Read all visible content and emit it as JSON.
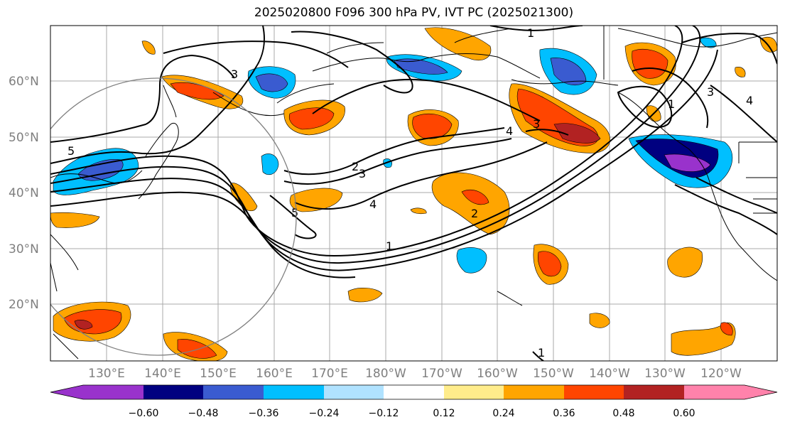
{
  "title": "2025020800 F096 300 hPa PV, IVT PC (2025021300)",
  "lat_labels": [
    "60°N",
    "50°N",
    "40°N",
    "30°N",
    "20°N"
  ],
  "lon_labels": [
    "130°E",
    "140°E",
    "150°E",
    "160°E",
    "170°E",
    "180°W",
    "170°W",
    "160°W",
    "150°W",
    "140°W",
    "130°W",
    "120°W"
  ],
  "colorbar": {
    "tick_labels": [
      "−0.60",
      "−0.48",
      "−0.36",
      "−0.24",
      "−0.12",
      "0.12",
      "0.24",
      "0.36",
      "0.48",
      "0.60"
    ],
    "colors": [
      "#9932cc",
      "#000080",
      "#3a5bd0",
      "#00bfff",
      "#b0e2ff",
      "#ffffff",
      "#ffec8b",
      "#ffa500",
      "#ff4500",
      "#b22222",
      "#ff82ab"
    ]
  },
  "contour_labels": [
    "1",
    "2",
    "3",
    "4",
    "5"
  ],
  "anomaly_colors": {
    "orange": "#ffa500",
    "red": "#ff4500",
    "darkred": "#b22222",
    "yellow": "#ffec8b",
    "cyan": "#00bfff",
    "blue": "#3a5bd0",
    "navy": "#000080",
    "purple": "#9932cc"
  }
}
